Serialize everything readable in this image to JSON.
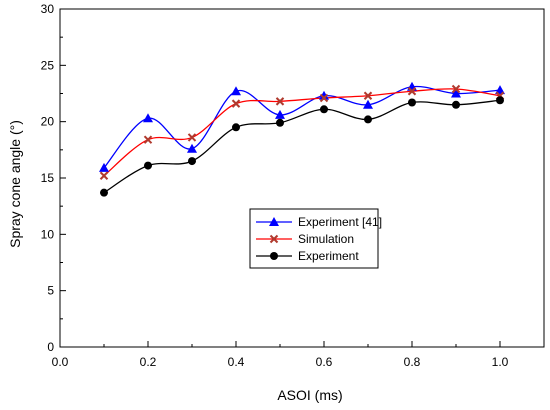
{
  "chart_data": {
    "type": "line",
    "xlabel": "ASOI (ms)",
    "ylabel": "Spray cone angle (°)",
    "xlim": [
      0.0,
      1.1
    ],
    "ylim": [
      0,
      30
    ],
    "xticks": [
      0.0,
      0.2,
      0.4,
      0.6,
      0.8,
      1.0
    ],
    "xtick_labels": [
      "0.0",
      "0.2",
      "0.4",
      "0.6",
      "0.8",
      "1.0"
    ],
    "yticks": [
      0,
      5,
      10,
      15,
      20,
      25,
      30
    ],
    "ytick_labels": [
      "0",
      "5",
      "10",
      "15",
      "20",
      "25",
      "30"
    ],
    "grid": false,
    "smooth_lines": true,
    "legend_position": "center-right",
    "series": [
      {
        "name": "Experiment [41]",
        "marker": "triangle",
        "color": "#0000ff",
        "marker_color": "#0000ff",
        "x": [
          0.1,
          0.2,
          0.3,
          0.4,
          0.5,
          0.6,
          0.7,
          0.8,
          0.9,
          1.0
        ],
        "values": [
          15.9,
          20.3,
          17.6,
          22.7,
          20.6,
          22.3,
          21.5,
          23.1,
          22.5,
          22.8
        ]
      },
      {
        "name": "Simulation",
        "marker": "x",
        "color": "#ff0000",
        "marker_color": "#b03a2e",
        "x": [
          0.1,
          0.2,
          0.3,
          0.4,
          0.5,
          0.6,
          0.7,
          0.8,
          0.9,
          1.0
        ],
        "values": [
          15.2,
          18.4,
          18.6,
          21.6,
          21.8,
          22.1,
          22.3,
          22.7,
          22.9,
          22.3
        ]
      },
      {
        "name": "Experiment",
        "marker": "circle",
        "color": "#000000",
        "marker_color": "#000000",
        "x": [
          0.1,
          0.2,
          0.3,
          0.4,
          0.5,
          0.6,
          0.7,
          0.8,
          0.9,
          1.0
        ],
        "values": [
          13.7,
          16.1,
          16.5,
          19.5,
          19.9,
          21.1,
          20.2,
          21.7,
          21.5,
          21.9
        ]
      }
    ]
  }
}
